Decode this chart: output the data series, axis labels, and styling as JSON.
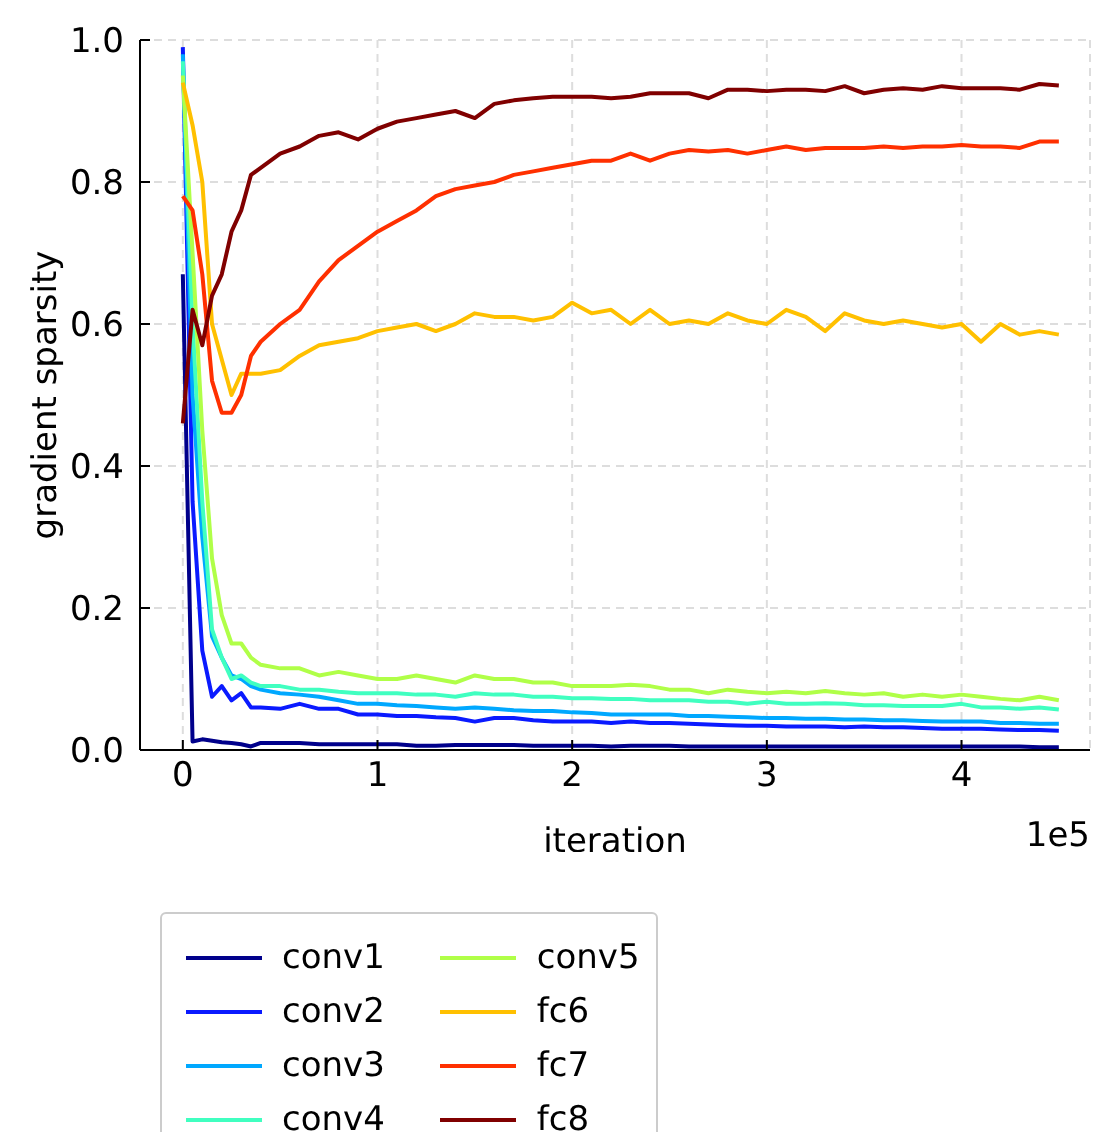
{
  "chart_data": {
    "type": "line",
    "xlabel": "iteration",
    "ylabel": "gradient sparsity",
    "annotations": [
      "1e5"
    ],
    "x": [
      0,
      0.05,
      0.1,
      0.15,
      0.2,
      0.25,
      0.3,
      0.35,
      0.4,
      0.5,
      0.6,
      0.7,
      0.8,
      0.9,
      1,
      1.1,
      1.2,
      1.3,
      1.4,
      1.5,
      1.6,
      1.7,
      1.8,
      1.9,
      2,
      2.1,
      2.2,
      2.3,
      2.4,
      2.5,
      2.6,
      2.7,
      2.8,
      2.9,
      3,
      3.1,
      3.2,
      3.3,
      3.4,
      3.5,
      3.6,
      3.7,
      3.8,
      3.9,
      4,
      4.1,
      4.2,
      4.3,
      4.4,
      4.5
    ],
    "xlim": [
      -0.22,
      4.66
    ],
    "xticks": [
      0,
      1,
      2,
      3,
      4
    ],
    "ylim": [
      0,
      1
    ],
    "yticks": [
      {
        "value": 0,
        "label": "0.0"
      },
      {
        "value": 0.2,
        "label": "0.2"
      },
      {
        "value": 0.4,
        "label": "0.4"
      },
      {
        "value": 0.6,
        "label": "0.6"
      },
      {
        "value": 0.8,
        "label": "0.8"
      },
      {
        "value": 1,
        "label": "1.0"
      }
    ],
    "grid": true,
    "legend": "bottom",
    "line_style": "solid",
    "series": [
      {
        "name": "conv1",
        "color": "#00008b",
        "values": [
          0.67,
          0.012,
          0.015,
          0.013,
          0.011,
          0.01,
          0.008,
          0.005,
          0.01,
          0.01,
          0.01,
          0.008,
          0.008,
          0.008,
          0.008,
          0.008,
          0.006,
          0.006,
          0.007,
          0.007,
          0.007,
          0.007,
          0.006,
          0.006,
          0.006,
          0.006,
          0.005,
          0.006,
          0.006,
          0.006,
          0.005,
          0.005,
          0.005,
          0.005,
          0.005,
          0.005,
          0.005,
          0.005,
          0.005,
          0.005,
          0.005,
          0.005,
          0.005,
          0.005,
          0.005,
          0.005,
          0.005,
          0.005,
          0.004,
          0.004
        ]
      },
      {
        "name": "conv2",
        "color": "#0a1aff",
        "values": [
          0.99,
          0.35,
          0.14,
          0.075,
          0.09,
          0.07,
          0.08,
          0.06,
          0.06,
          0.058,
          0.065,
          0.058,
          0.058,
          0.05,
          0.05,
          0.048,
          0.048,
          0.046,
          0.045,
          0.04,
          0.045,
          0.045,
          0.042,
          0.04,
          0.04,
          0.04,
          0.038,
          0.04,
          0.038,
          0.038,
          0.037,
          0.036,
          0.035,
          0.034,
          0.034,
          0.033,
          0.033,
          0.033,
          0.032,
          0.033,
          0.032,
          0.032,
          0.031,
          0.03,
          0.03,
          0.03,
          0.029,
          0.028,
          0.028,
          0.027
        ]
      },
      {
        "name": "conv3",
        "color": "#00a8ff",
        "values": [
          0.98,
          0.5,
          0.3,
          0.16,
          0.13,
          0.105,
          0.1,
          0.09,
          0.085,
          0.08,
          0.078,
          0.075,
          0.07,
          0.065,
          0.065,
          0.063,
          0.062,
          0.06,
          0.058,
          0.06,
          0.058,
          0.056,
          0.055,
          0.055,
          0.053,
          0.052,
          0.05,
          0.05,
          0.05,
          0.05,
          0.048,
          0.048,
          0.047,
          0.046,
          0.045,
          0.045,
          0.044,
          0.044,
          0.043,
          0.043,
          0.042,
          0.042,
          0.041,
          0.04,
          0.04,
          0.04,
          0.038,
          0.038,
          0.037,
          0.037
        ]
      },
      {
        "name": "conv4",
        "color": "#40ffc0",
        "values": [
          0.97,
          0.6,
          0.35,
          0.17,
          0.13,
          0.1,
          0.105,
          0.095,
          0.09,
          0.09,
          0.085,
          0.085,
          0.082,
          0.08,
          0.08,
          0.08,
          0.078,
          0.078,
          0.075,
          0.08,
          0.078,
          0.078,
          0.075,
          0.075,
          0.073,
          0.073,
          0.072,
          0.072,
          0.07,
          0.07,
          0.07,
          0.068,
          0.068,
          0.065,
          0.068,
          0.065,
          0.065,
          0.066,
          0.065,
          0.063,
          0.063,
          0.062,
          0.062,
          0.062,
          0.065,
          0.06,
          0.06,
          0.058,
          0.06,
          0.057
        ]
      },
      {
        "name": "conv5",
        "color": "#b0ff48",
        "values": [
          0.95,
          0.7,
          0.45,
          0.27,
          0.19,
          0.15,
          0.15,
          0.13,
          0.12,
          0.115,
          0.115,
          0.105,
          0.11,
          0.105,
          0.1,
          0.1,
          0.105,
          0.1,
          0.095,
          0.105,
          0.1,
          0.1,
          0.095,
          0.095,
          0.09,
          0.09,
          0.09,
          0.092,
          0.09,
          0.085,
          0.085,
          0.08,
          0.085,
          0.082,
          0.08,
          0.082,
          0.08,
          0.083,
          0.08,
          0.078,
          0.08,
          0.075,
          0.078,
          0.075,
          0.078,
          0.075,
          0.072,
          0.07,
          0.075,
          0.07
        ]
      },
      {
        "name": "fc6",
        "color": "#ffc000",
        "values": [
          0.94,
          0.88,
          0.8,
          0.6,
          0.55,
          0.5,
          0.53,
          0.53,
          0.53,
          0.535,
          0.555,
          0.57,
          0.575,
          0.58,
          0.59,
          0.595,
          0.6,
          0.59,
          0.6,
          0.615,
          0.61,
          0.61,
          0.605,
          0.61,
          0.63,
          0.615,
          0.62,
          0.6,
          0.62,
          0.6,
          0.605,
          0.6,
          0.615,
          0.605,
          0.6,
          0.62,
          0.61,
          0.59,
          0.615,
          0.605,
          0.6,
          0.605,
          0.6,
          0.595,
          0.6,
          0.575,
          0.6,
          0.585,
          0.59,
          0.585
        ]
      },
      {
        "name": "fc7",
        "color": "#ff3000",
        "values": [
          0.78,
          0.76,
          0.67,
          0.52,
          0.475,
          0.475,
          0.5,
          0.555,
          0.575,
          0.6,
          0.62,
          0.66,
          0.69,
          0.71,
          0.73,
          0.745,
          0.76,
          0.78,
          0.79,
          0.795,
          0.8,
          0.81,
          0.815,
          0.82,
          0.825,
          0.83,
          0.83,
          0.84,
          0.83,
          0.84,
          0.845,
          0.843,
          0.845,
          0.84,
          0.845,
          0.85,
          0.845,
          0.848,
          0.848,
          0.848,
          0.85,
          0.848,
          0.85,
          0.85,
          0.852,
          0.85,
          0.85,
          0.848,
          0.857,
          0.857
        ]
      },
      {
        "name": "fc8",
        "color": "#800000",
        "values": [
          0.46,
          0.62,
          0.57,
          0.64,
          0.67,
          0.73,
          0.76,
          0.81,
          0.82,
          0.84,
          0.85,
          0.865,
          0.87,
          0.86,
          0.875,
          0.885,
          0.89,
          0.895,
          0.9,
          0.89,
          0.91,
          0.915,
          0.918,
          0.92,
          0.92,
          0.92,
          0.918,
          0.92,
          0.925,
          0.925,
          0.925,
          0.918,
          0.93,
          0.93,
          0.928,
          0.93,
          0.93,
          0.928,
          0.935,
          0.925,
          0.93,
          0.932,
          0.93,
          0.935,
          0.932,
          0.932,
          0.932,
          0.93,
          0.938,
          0.936
        ]
      }
    ]
  }
}
